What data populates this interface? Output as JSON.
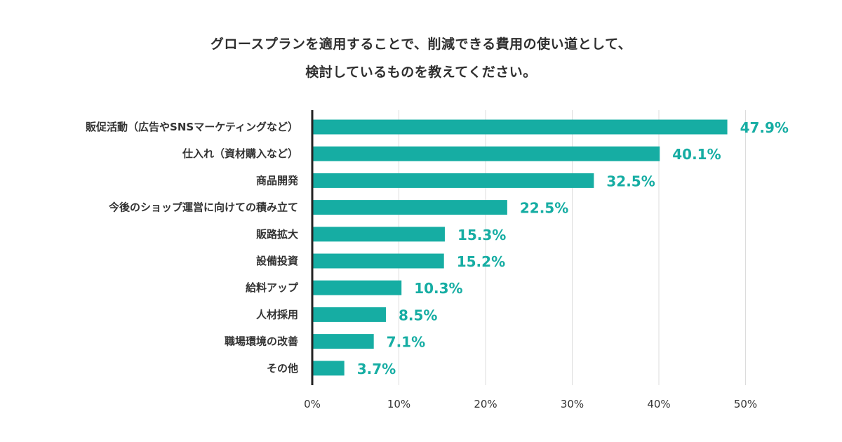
{
  "chart_data": {
    "type": "bar",
    "orientation": "horizontal",
    "title_lines": [
      "グロースプランを適用することで、削減できる費用の使い道として、",
      "検討しているものを教えてください。"
    ],
    "categories": [
      "販促活動（広告やSNSマーケティングなど）",
      "仕入れ（資材購入など）",
      "商品開発",
      "今後のショップ運営に向けての積み立て",
      "販路拡大",
      "設備投資",
      "給料アップ",
      "人材採用",
      "職場環境の改善",
      "その他"
    ],
    "values": [
      47.9,
      40.1,
      32.5,
      22.5,
      15.3,
      15.2,
      10.3,
      8.5,
      7.1,
      3.7
    ],
    "value_labels": [
      "47.9%",
      "40.1%",
      "32.5%",
      "22.5%",
      "15.3%",
      "15.2%",
      "10.3%",
      "8.5%",
      "7.1%",
      "3.7%"
    ],
    "xlim": [
      0,
      50
    ],
    "xticks": [
      0,
      10,
      20,
      30,
      40,
      50
    ],
    "xtick_labels": [
      "0%",
      "10%",
      "20%",
      "30%",
      "40%",
      "50%"
    ],
    "grid": true,
    "bar_color": "#16ada3",
    "value_label_color": "#16ada3",
    "grid_color": "#dcdcdc",
    "axis_color": "#222222"
  }
}
